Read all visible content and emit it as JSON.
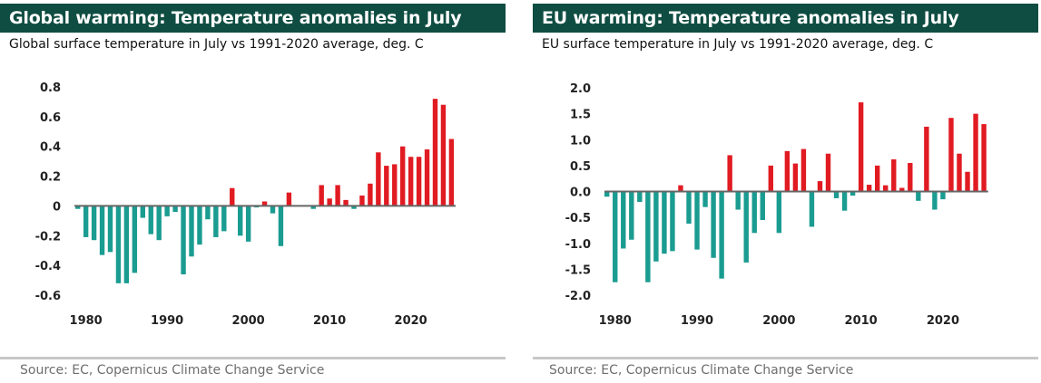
{
  "colors": {
    "header_bg": "#0f4d42",
    "positive": "#e11b22",
    "negative": "#1a9c91",
    "axis": "#666666"
  },
  "left": {
    "title": "Global warming: Temperature anomalies in July",
    "subtitle": "Global surface temperature in July vs 1991-2020 average, deg. C",
    "source": "Source: EC, Copernicus Climate Change Service"
  },
  "right": {
    "title": "EU warming: Temperature anomalies in July",
    "subtitle": "EU surface temperature in July vs 1991-2020 average, deg. C",
    "source": "Source: EC, Copernicus Climate Change Service"
  },
  "chart_data": [
    {
      "type": "bar",
      "title": "Global warming: Temperature anomalies in July",
      "subtitle": "Global surface temperature in July vs 1991-2020 average, deg. C",
      "categories": [
        1979,
        1980,
        1981,
        1982,
        1983,
        1984,
        1985,
        1986,
        1987,
        1988,
        1989,
        1990,
        1991,
        1992,
        1993,
        1994,
        1995,
        1996,
        1997,
        1998,
        1999,
        2000,
        2001,
        2002,
        2003,
        2004,
        2005,
        2006,
        2007,
        2008,
        2009,
        2010,
        2011,
        2012,
        2013,
        2014,
        2015,
        2016,
        2017,
        2018,
        2019,
        2020,
        2021,
        2022,
        2023,
        2024,
        2025
      ],
      "values": [
        -0.02,
        -0.21,
        -0.23,
        -0.33,
        -0.31,
        -0.52,
        -0.52,
        -0.45,
        -0.08,
        -0.19,
        -0.23,
        -0.07,
        -0.04,
        -0.46,
        -0.34,
        -0.26,
        -0.09,
        -0.21,
        -0.17,
        0.12,
        -0.2,
        -0.24,
        -0.01,
        0.03,
        -0.05,
        -0.27,
        0.09,
        0.0,
        0.0,
        -0.02,
        0.14,
        0.05,
        0.14,
        0.04,
        -0.02,
        0.07,
        0.15,
        0.36,
        0.27,
        0.28,
        0.4,
        0.33,
        0.33,
        0.38,
        0.72,
        0.68,
        0.45
      ],
      "xticks": [
        "1980",
        "1990",
        "2000",
        "2010",
        "2020"
      ],
      "yticks": [
        "0.8",
        "0.6",
        "0.4",
        "0.2",
        "0",
        "-0.2",
        "-0.4",
        "-0.6"
      ],
      "ylim": [
        -0.6,
        0.8
      ],
      "grid": false,
      "source": "Source: EC, Copernicus Climate Change Service"
    },
    {
      "type": "bar",
      "title": "EU warming: Temperature anomalies in July",
      "subtitle": "EU surface temperature in July vs 1991-2020 average, deg. C",
      "categories": [
        1979,
        1980,
        1981,
        1982,
        1983,
        1984,
        1985,
        1986,
        1987,
        1988,
        1989,
        1990,
        1991,
        1992,
        1993,
        1994,
        1995,
        1996,
        1997,
        1998,
        1999,
        2000,
        2001,
        2002,
        2003,
        2004,
        2005,
        2006,
        2007,
        2008,
        2009,
        2010,
        2011,
        2012,
        2013,
        2014,
        2015,
        2016,
        2017,
        2018,
        2019,
        2020,
        2021,
        2022,
        2023,
        2024,
        2025
      ],
      "values": [
        -0.1,
        -1.75,
        -1.1,
        -0.93,
        -0.2,
        -1.75,
        -1.35,
        -1.2,
        -1.15,
        0.12,
        -0.62,
        -1.12,
        -0.3,
        -1.28,
        -1.68,
        0.7,
        -0.35,
        -1.37,
        -0.8,
        -0.55,
        0.5,
        -0.8,
        0.78,
        0.54,
        0.82,
        -0.68,
        0.2,
        0.73,
        -0.13,
        -0.37,
        -0.08,
        1.72,
        0.13,
        0.5,
        0.12,
        0.62,
        0.07,
        0.55,
        -0.18,
        1.25,
        -0.35,
        -0.15,
        1.42,
        0.73,
        0.38,
        1.5,
        1.3
      ],
      "xticks": [
        "1980",
        "1990",
        "2000",
        "2010",
        "2020"
      ],
      "yticks": [
        "2.0",
        "1.5",
        "1.0",
        "0.5",
        "0.0",
        "-0.5",
        "-1.0",
        "-1.5",
        "-2.0"
      ],
      "ylim": [
        -2.0,
        2.0
      ],
      "grid": false,
      "source": "Source: EC, Copernicus Climate Change Service"
    }
  ]
}
